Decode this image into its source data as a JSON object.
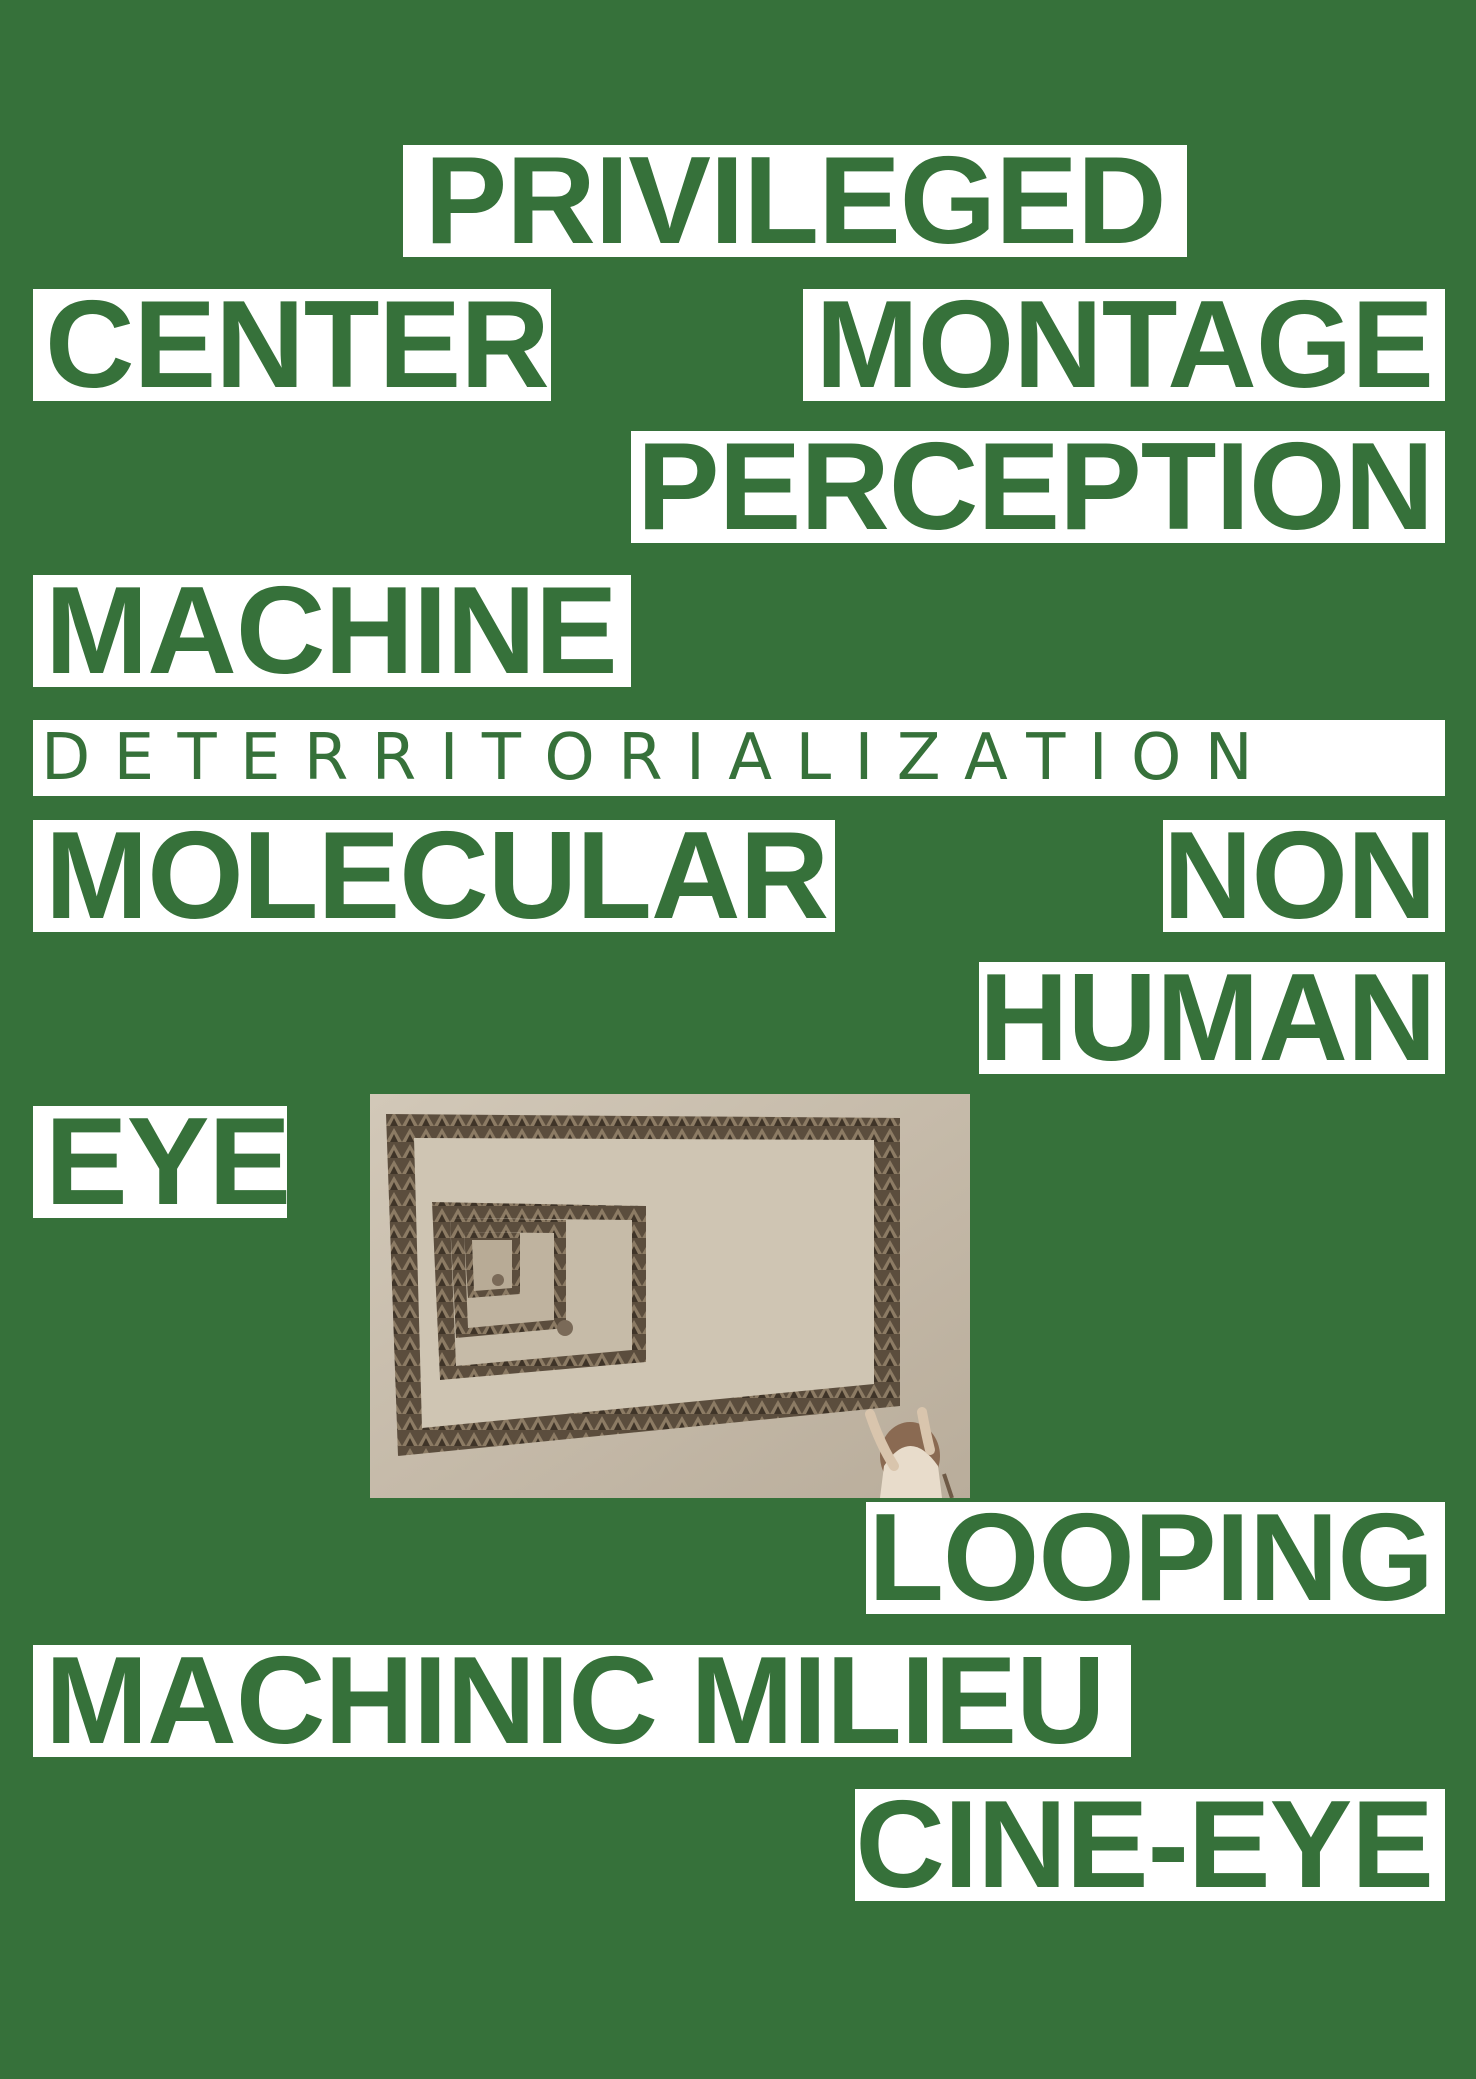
{
  "words": {
    "privileged": "PRIVILEGED",
    "center": "CENTER",
    "montage": "MONTAGE",
    "perception": "PERCEPTION",
    "machine": "MACHINE",
    "deterritorialization": "DETERRITORIALIZATION",
    "molecular": "MOLECULAR",
    "non": "NON",
    "human": "HUMAN",
    "eye": "EYE",
    "looping": "LOOPING",
    "machinic_milieu": "MACHINIC MILIEU",
    "cine_eye": "CINE-EYE"
  },
  "colors": {
    "background": "#36713a",
    "label_background": "#ffffff",
    "label_text": "#36713a",
    "photo_tone": "#c9beae"
  }
}
